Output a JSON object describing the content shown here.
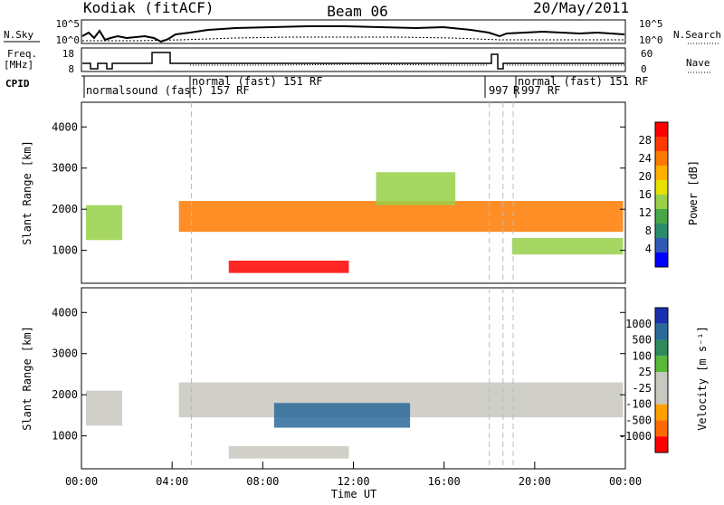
{
  "header": {
    "station": "Kodiak (fitACF)",
    "beam": "Beam 06",
    "date": "20/May/2011"
  },
  "top_panels": {
    "nsky_label": "N.Sky",
    "nsearch_label": "N.Search",
    "nsky_ticks": [
      "10^5",
      "10^0"
    ],
    "nsearch_ticks": [
      "10^5",
      "10^0"
    ],
    "freq_label_1": "Freq.",
    "freq_label_2": "[MHz]",
    "freq_ticks": [
      "18",
      "8"
    ],
    "nave_label": "Nave",
    "nave_ticks": [
      "60",
      "0"
    ],
    "cpid_label": "CPID",
    "cpid_segments": [
      {
        "label": "normalsound (fast) 157 RF",
        "row": 2
      },
      {
        "label": "normal (fast)  151 RF",
        "row": 1
      },
      {
        "label": "997",
        "row": 2
      },
      {
        "label": "R",
        "row": 2
      },
      {
        "label": "997 RF",
        "row": 2
      },
      {
        "label": "normal (fast)  151 RF",
        "row": 1
      }
    ]
  },
  "chart_data": [
    {
      "type": "heatmap",
      "panel": "power",
      "ylabel": "Slant Range [km]",
      "yticks": [
        "4000",
        "3000",
        "2000",
        "1000"
      ],
      "ylim": [
        200,
        4600
      ],
      "xlim_hours": [
        0,
        24
      ],
      "colorbar_label": "Power [dB]",
      "colorbar_ticks": [
        "28",
        "24",
        "20",
        "16",
        "12",
        "8",
        "4"
      ],
      "colorbar_colors": [
        "#ff0000",
        "#ff3a00",
        "#ff7a00",
        "#ffb000",
        "#e8e000",
        "#98d048",
        "#48a848",
        "#2a8c6c",
        "#305ab8",
        "#0000ff"
      ],
      "bands": [
        {
          "t0": 0.2,
          "t1": 1.8,
          "r0": 1250,
          "r1": 2100,
          "level": 0.45
        },
        {
          "t0": 4.3,
          "t1": 23.9,
          "r0": 1450,
          "r1": 2200,
          "level": 0.75
        },
        {
          "t0": 6.5,
          "t1": 11.8,
          "r0": 450,
          "r1": 750,
          "level": 0.95
        },
        {
          "t0": 13.0,
          "t1": 16.5,
          "r0": 2100,
          "r1": 2900,
          "level": 0.4
        },
        {
          "t0": 19.0,
          "t1": 23.9,
          "r0": 900,
          "r1": 1300,
          "level": 0.5
        }
      ]
    },
    {
      "type": "heatmap",
      "panel": "velocity",
      "ylabel": "Slant Range [km]",
      "yticks": [
        "4000",
        "3000",
        "2000",
        "1000"
      ],
      "ylim": [
        200,
        4600
      ],
      "xlim_hours": [
        0,
        24
      ],
      "xticks": [
        "00:00",
        "04:00",
        "08:00",
        "12:00",
        "16:00",
        "20:00",
        "00:00"
      ],
      "xlabel": "Time UT",
      "colorbar_label": "Velocity [m s⁻¹]",
      "colorbar_ticks": [
        "1000",
        "500",
        "100",
        "25",
        "-25",
        "-100",
        "-500",
        "-1000"
      ],
      "colorbar_colors": [
        "#1a2fb0",
        "#2a6a9a",
        "#2e8a5a",
        "#58b838",
        "#c8c8c0",
        "#c8c8c0",
        "#ffa000",
        "#ff6a00",
        "#ff0000"
      ],
      "bands": [
        {
          "t0": 0.2,
          "t1": 1.8,
          "r0": 1250,
          "r1": 2100,
          "level": 0.5
        },
        {
          "t0": 4.3,
          "t1": 23.9,
          "r0": 1450,
          "r1": 2300,
          "level": 0.5
        },
        {
          "t0": 8.5,
          "t1": 14.5,
          "r0": 1200,
          "r1": 1800,
          "level": 0.85
        },
        {
          "t0": 6.5,
          "t1": 11.8,
          "r0": 450,
          "r1": 750,
          "level": 0.5
        }
      ]
    }
  ]
}
